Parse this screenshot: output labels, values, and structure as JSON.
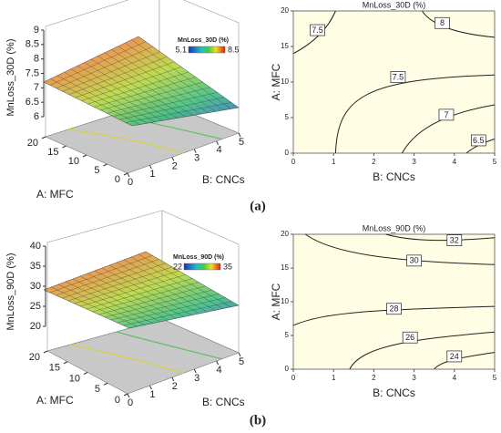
{
  "chart_data": [
    {
      "type": "surface",
      "zlabel": "MnLoss_30D (%)",
      "xlabel": "B: CNCs",
      "ylabel": "A: MFC",
      "zlim": [
        6,
        9
      ],
      "zticks": [
        6,
        6.5,
        7,
        7.5,
        8,
        8.5,
        9
      ],
      "xlim": [
        0,
        5
      ],
      "xticks": [
        0,
        1,
        2,
        3,
        4,
        5
      ],
      "ylim": [
        0,
        20
      ],
      "yticks": [
        0,
        5,
        10,
        15,
        20
      ],
      "legend_title": "MnLoss_30D (%)",
      "colorbar": [
        5.1,
        8.5
      ]
    },
    {
      "type": "contour",
      "title": "MnLoss_30D (%)",
      "xlabel": "B: CNCs",
      "ylabel": "A: MFC",
      "xlim": [
        0,
        5
      ],
      "xticks": [
        0,
        1,
        2,
        3,
        4,
        5
      ],
      "ylim": [
        0,
        20
      ],
      "yticks": [
        0,
        5,
        10,
        15,
        20
      ],
      "levels": [
        8,
        7.5,
        7.5,
        7,
        6.5
      ],
      "caption": "(a)"
    },
    {
      "type": "surface",
      "zlabel": "MnLoss_90D (%)",
      "xlabel": "B: CNCs",
      "ylabel": "A: MFC",
      "zlim": [
        20,
        40
      ],
      "zticks": [
        20,
        25,
        30,
        35,
        40
      ],
      "xlim": [
        0,
        5
      ],
      "xticks": [
        0,
        1,
        2,
        3,
        4,
        5
      ],
      "ylim": [
        0,
        20
      ],
      "yticks": [
        0,
        5,
        10,
        15,
        20
      ],
      "legend_title": "MnLoss_90D (%)",
      "colorbar": [
        22,
        35
      ]
    },
    {
      "type": "contour",
      "title": "MnLoss_90D (%)",
      "xlabel": "B: CNCs",
      "ylabel": "A: MFC",
      "xlim": [
        0,
        5
      ],
      "xticks": [
        0,
        1,
        2,
        3,
        4,
        5
      ],
      "ylim": [
        0,
        20
      ],
      "yticks": [
        0,
        5,
        10,
        15,
        20
      ],
      "levels": [
        32,
        30,
        28,
        26,
        24
      ],
      "caption": "(b)"
    }
  ]
}
